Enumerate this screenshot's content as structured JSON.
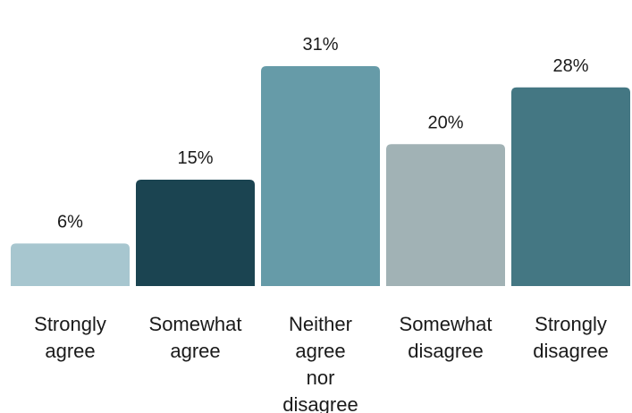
{
  "chart_data": {
    "type": "bar",
    "categories": [
      [
        "Strongly",
        "agree"
      ],
      [
        "Somewhat",
        "agree"
      ],
      [
        "Neither",
        "agree",
        "nor",
        "disagree"
      ],
      [
        "Somewhat",
        "disagree"
      ],
      [
        "Strongly",
        "disagree"
      ]
    ],
    "values": [
      6,
      15,
      31,
      20,
      28
    ],
    "value_labels": [
      "6%",
      "15%",
      "31%",
      "20%",
      "28%"
    ],
    "colors": [
      "#a7c6cf",
      "#1b4451",
      "#669ba8",
      "#a1b2b5",
      "#447783"
    ],
    "ylim": [
      0,
      31
    ],
    "grid": false,
    "legend": "none",
    "title": "",
    "xlabel": "",
    "ylabel": ""
  }
}
